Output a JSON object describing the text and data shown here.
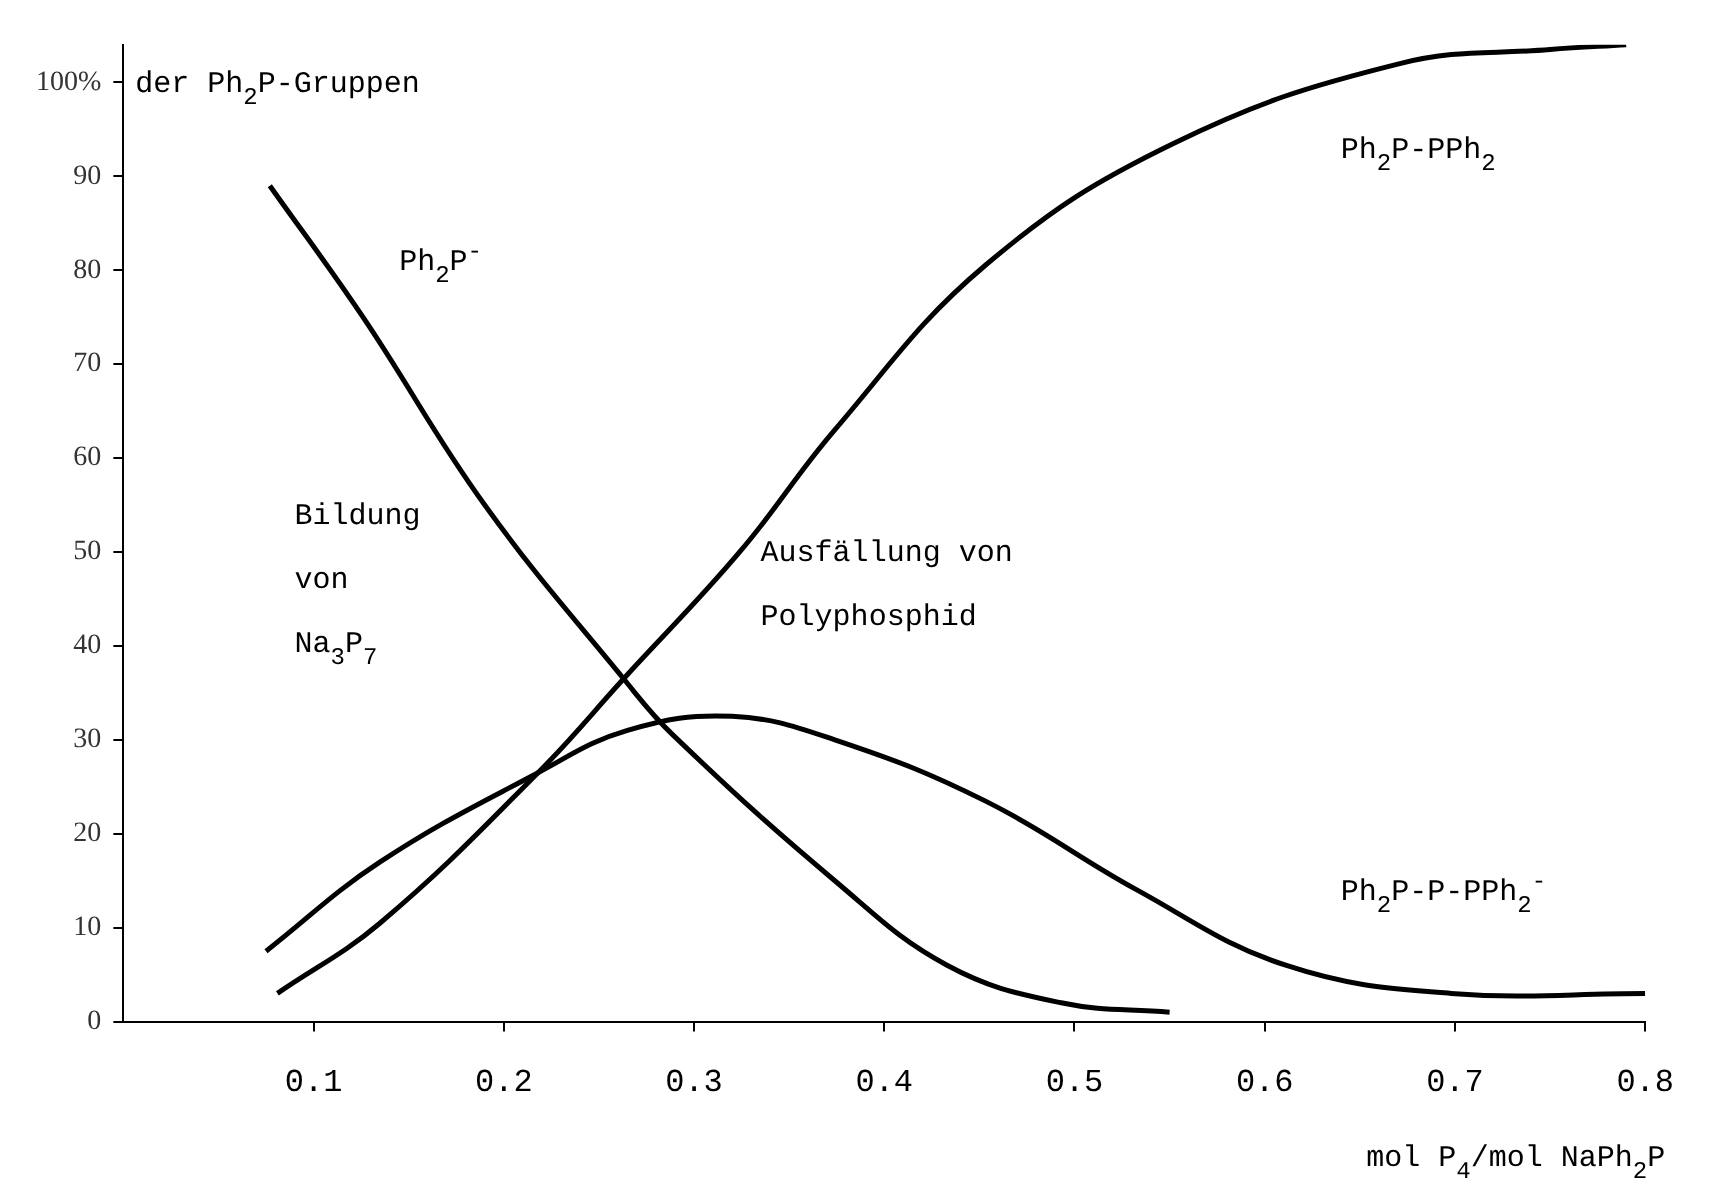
{
  "chart_data": {
    "type": "line",
    "ylabel": "der Ph$_{2}$P-Gruppen",
    "xlabel": "mol P$_{4}$/mol NaPh$_{2}$P",
    "xlim": [
      0,
      0.8
    ],
    "ylim": [
      0,
      104
    ],
    "xticks": [
      0.1,
      0.2,
      0.3,
      0.4,
      0.5,
      0.6,
      0.7,
      0.8
    ],
    "yticks": [
      0,
      10,
      20,
      30,
      40,
      50,
      60,
      70,
      80,
      90,
      {
        "value": 100,
        "label": "100%"
      }
    ],
    "grid": false,
    "legend": false,
    "marker": "none",
    "line_style": "solid",
    "series": [
      {
        "name": "Ph$_{2}$P$^{-}$",
        "color": "#000000",
        "x": [
          0.077,
          0.126,
          0.19,
          0.263,
          0.289,
          0.374,
          0.433,
          0.493,
          0.55
        ],
        "values": [
          89,
          75,
          55,
          36.5,
          30.5,
          15,
          6,
          2,
          1
        ]
      },
      {
        "name": "Ph$_{2}$P-PPh$_{2}$",
        "color": "#000000",
        "x": [
          0.081,
          0.135,
          0.218,
          0.263,
          0.324,
          0.374,
          0.453,
          0.552,
          0.671,
          0.75,
          0.79
        ],
        "values": [
          3,
          10.5,
          26.5,
          36.5,
          50,
          63,
          80.5,
          93.5,
          102,
          103.5,
          104
        ]
      },
      {
        "name": "Ph$_{2}$P-P-PPh$_{2}$$^{-}$",
        "color": "#000000",
        "x": [
          0.075,
          0.135,
          0.218,
          0.265,
          0.32,
          0.374,
          0.453,
          0.533,
          0.611,
          0.698,
          0.8
        ],
        "values": [
          7.5,
          17,
          26.5,
          31,
          32.5,
          30,
          23.5,
          14,
          6,
          3,
          3
        ]
      }
    ],
    "annotations": [
      "Bildung von Na$_{3}$P$_{7}$",
      "Ausfällung von Polyphosphid"
    ]
  }
}
